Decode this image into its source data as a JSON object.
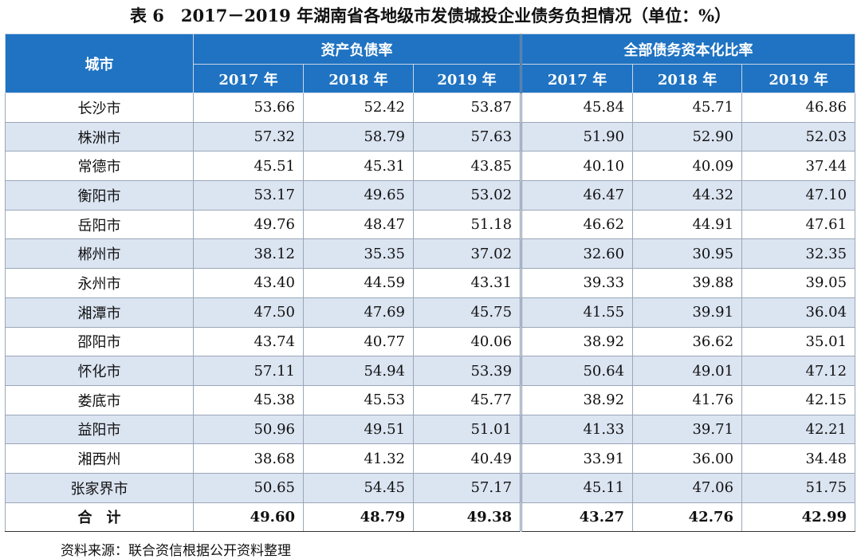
{
  "title": "表 6　2017－2019 年湖南省各地级市发债城投企业债务负担情况（单位：%）",
  "table": {
    "header": {
      "city": "城市",
      "groups": [
        {
          "name": "资产负债率",
          "years": [
            "2017 年",
            "2018 年",
            "2019 年"
          ]
        },
        {
          "name": "全部债务资本化比率",
          "years": [
            "2017 年",
            "2018 年",
            "2019 年"
          ]
        }
      ]
    },
    "rows": [
      [
        "长沙市",
        "53.66",
        "52.42",
        "53.87",
        "45.84",
        "45.71",
        "46.86"
      ],
      [
        "株洲市",
        "57.32",
        "58.79",
        "57.63",
        "51.90",
        "52.90",
        "52.03"
      ],
      [
        "常德市",
        "45.51",
        "45.31",
        "43.85",
        "40.10",
        "40.09",
        "37.44"
      ],
      [
        "衡阳市",
        "53.17",
        "49.65",
        "53.02",
        "46.47",
        "44.32",
        "47.10"
      ],
      [
        "岳阳市",
        "49.76",
        "48.47",
        "51.18",
        "46.62",
        "44.91",
        "47.61"
      ],
      [
        "郴州市",
        "38.12",
        "35.35",
        "37.02",
        "32.60",
        "30.95",
        "32.35"
      ],
      [
        "永州市",
        "43.40",
        "44.59",
        "43.31",
        "39.33",
        "39.88",
        "39.05"
      ],
      [
        "湘潭市",
        "47.50",
        "47.69",
        "45.75",
        "41.55",
        "39.91",
        "36.04"
      ],
      [
        "邵阳市",
        "43.74",
        "40.77",
        "40.06",
        "38.92",
        "36.62",
        "35.01"
      ],
      [
        "怀化市",
        "57.11",
        "54.94",
        "53.39",
        "50.64",
        "49.01",
        "47.12"
      ],
      [
        "娄底市",
        "45.38",
        "45.53",
        "45.77",
        "38.92",
        "41.76",
        "42.15"
      ],
      [
        "益阳市",
        "50.96",
        "49.51",
        "51.01",
        "41.33",
        "39.71",
        "42.21"
      ],
      [
        "湘西州",
        "38.68",
        "41.32",
        "40.49",
        "33.91",
        "36.00",
        "34.48"
      ],
      [
        "张家界市",
        "50.65",
        "54.45",
        "57.17",
        "45.11",
        "47.06",
        "51.75"
      ]
    ],
    "total": [
      "合　计",
      "49.60",
      "48.79",
      "49.38",
      "43.27",
      "42.76",
      "42.99"
    ]
  },
  "source": "资料来源：联合资信根据公开资料整理"
}
